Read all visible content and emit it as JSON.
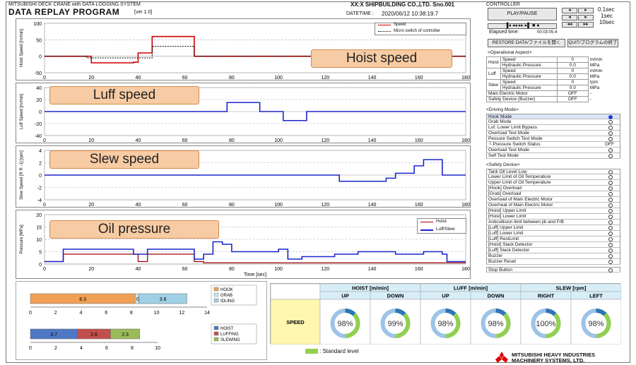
{
  "header": {
    "system": "MITSUBISHI DECK CRANE with DATA LOGGING SYSTEM",
    "program": "DATA REPLAY PROGRAM",
    "version": "[ver 1.0]",
    "shipyard": "XX:X SHIPBUILDING CO.,LTD.  Sno.001",
    "datetime_label": "DATETIME :",
    "datetime": "2020/06/12 10:38:19.7"
  },
  "charts": {
    "hoist": {
      "tag": "Hoist speed",
      "ylabel": "Hoist Speed [m/min]",
      "legend": [
        "Speed",
        "Micro switch of controller"
      ]
    },
    "luff": {
      "tag": "Luff speed",
      "ylabel": "Luff Speed [m/min]"
    },
    "slew": {
      "tag": "Slew speed",
      "ylabel": "Slew Speed [R R -1] [rpm]"
    },
    "oil": {
      "tag": "Oil pressure",
      "ylabel": "Pressure [MPa]",
      "legend": [
        "Hoist",
        "Luff/Slew"
      ],
      "xlabel": "Time [sec]"
    },
    "xticks": [
      "0",
      "20",
      "40",
      "60",
      "80",
      "100",
      "120",
      "140",
      "160",
      "180"
    ]
  },
  "chart_data": [
    {
      "type": "line",
      "series": [
        {
          "name": "Speed",
          "x": [
            0,
            18,
            20,
            22,
            36,
            38,
            40,
            44,
            46,
            60,
            62,
            64
          ],
          "y": [
            0,
            0,
            -20,
            -20,
            -20,
            -18,
            10,
            10,
            60,
            60,
            60,
            0
          ]
        },
        {
          "name": "Micro switch of controller",
          "x": [
            0,
            18,
            38,
            46,
            64
          ],
          "y": [
            0,
            -5,
            -5,
            30,
            0
          ]
        }
      ],
      "xlim": [
        0,
        180
      ]
    },
    {
      "type": "line",
      "series": [
        {
          "name": "Luff",
          "x": [
            0,
            68,
            76,
            78,
            88,
            92,
            100,
            102,
            110,
            112
          ],
          "y": [
            0,
            0,
            0,
            15,
            15,
            0,
            0,
            -15,
            -15,
            0
          ]
        }
      ],
      "xlim": [
        0,
        180
      ]
    },
    {
      "type": "line",
      "series": [
        {
          "name": "Slew",
          "x": [
            0,
            118,
            126,
            134,
            146,
            150,
            158,
            162,
            168,
            170
          ],
          "y": [
            0,
            0,
            -1,
            -1,
            -0.5,
            0.3,
            1.5,
            2.5,
            2.5,
            0
          ]
        }
      ],
      "xlim": [
        0,
        180
      ]
    },
    {
      "type": "line",
      "series": [
        {
          "name": "Hoist",
          "x": [
            0,
            4,
            8,
            18,
            36,
            40,
            44,
            60,
            64,
            68,
            180
          ],
          "y": [
            1,
            1,
            4,
            4,
            4,
            1,
            4,
            4,
            1,
            0.5,
            0.5
          ]
        },
        {
          "name": "Luff/Slew",
          "x": [
            0,
            4,
            8,
            18,
            36,
            38,
            44,
            60,
            64,
            68,
            72,
            76,
            78,
            80,
            100,
            104,
            110,
            118,
            124,
            126,
            134,
            146,
            150,
            158,
            162,
            170,
            172,
            178
          ],
          "y": [
            1,
            1,
            6,
            6,
            6,
            4,
            6,
            6,
            2,
            4,
            9,
            8,
            8,
            5,
            6,
            2,
            3,
            3,
            4,
            4,
            5,
            5,
            4,
            4,
            5,
            4,
            1,
            1
          ]
        }
      ],
      "xlim": [
        0,
        180
      ]
    }
  ],
  "controller": {
    "title": "CONTROLLER",
    "play_pause": "PLAY/PAUSE",
    "steps": [
      "0.1sec",
      "1sec",
      "10sec"
    ],
    "elapsed_label": "Elapsed time:",
    "elapsed": "00:03:05.4",
    "restore": "RESTORE DATA/ファイルを開く",
    "quit": "QUIT/プログラムの終了"
  },
  "operational": {
    "title": "<Operational Aspect>",
    "rows": [
      {
        "group": "Hoist",
        "name": "Speed",
        "value": "0",
        "unit": "m/min"
      },
      {
        "group": "",
        "name": "Hydraulic Pressure",
        "value": "0.0",
        "unit": "MPa"
      },
      {
        "group": "Luff",
        "name": "Speed",
        "value": "0",
        "unit": "m/min"
      },
      {
        "group": "",
        "name": "Hydraulic Pressure",
        "value": "0.0",
        "unit": "MPa"
      },
      {
        "group": "Slew",
        "name": "Speed",
        "value": "0",
        "unit": "rpm"
      },
      {
        "group": "",
        "name": "Hydraulic Pressure",
        "value": "0.0",
        "unit": "MPa"
      },
      {
        "group": "",
        "name": "Main Electric Motor",
        "value": "OFF",
        "unit": "-"
      },
      {
        "group": "",
        "name": "Safety Device (Buzzer)",
        "value": "OFF",
        "unit": "-"
      }
    ]
  },
  "driving": {
    "title": "<Driving Mode>",
    "items": [
      "Hook Mode",
      "Grab Mode",
      "Luf. Lower Limit Bypass",
      "Overload Test Mode",
      "Pessure Switch Test Mode",
      "└ Pressure Switch Status",
      "Overload Test Mode",
      "Self Test Mode"
    ],
    "status_value": "OFF"
  },
  "safety": {
    "title": "<Safety Device>",
    "items": [
      "Tank Oil Level Low",
      "Lower Limit of Oil Temperature",
      "Upper Limit of Oil Temperature",
      "[Hook] Overload",
      "[Grab] Overload",
      "Overload of Main Electric Motor",
      "Overheat of Main Electric Motor",
      "[Hoist] Upper Limit",
      "[Hoist] Lower Limit",
      "Anticollision limit between jib and F/B",
      "[Luff] Upper Limit",
      "[Luff] Lower Limit",
      "[Luff] RestLimit",
      "[Hoist] Slack Detector",
      "[Luff] Slack Detector",
      "Buzzer",
      "Buzzer Reset"
    ],
    "stop": "Stop Button"
  },
  "bars": {
    "mode_legend": [
      "HOOK",
      "GRAB",
      "IDLING"
    ],
    "mode_values": [
      "8.3",
      "0.3",
      "3.8"
    ],
    "mode_ticks": [
      "0",
      "2",
      "4",
      "6",
      "8",
      "10",
      "12",
      "14"
    ],
    "motion_legend": [
      "HOIST",
      "LUFFING",
      "SLEWING"
    ],
    "motion_values": [
      "3.7",
      "2.6",
      "2.3"
    ],
    "motion_ticks": [
      "0",
      "2",
      "4",
      "6",
      "8",
      "10"
    ],
    "colors": {
      "hook": "#f0a054",
      "grab": "#c8e8f4",
      "idling": "#9fd0e6",
      "hoist": "#4f78c4",
      "luffing": "#c0504d",
      "slewing": "#9bbb59"
    }
  },
  "speed_table": {
    "groups": [
      "HOIST [m/min]",
      "LUFF [m/min]",
      "SLEW [rpm]"
    ],
    "subs": [
      "UP",
      "DOWN",
      "UP",
      "DOWN",
      "RIGHT",
      "LEFT"
    ],
    "row_label": "SPEED",
    "values": [
      "98%",
      "99%",
      "98%",
      "98%",
      "100%",
      "98%"
    ],
    "pct": [
      98,
      99,
      98,
      98,
      100,
      98
    ],
    "legend": ": Standard level"
  },
  "footer": {
    "company_line1": "MITSUBISHI HEAVY INDUSTRIES",
    "company_line2": "MACHINERY SYSTEMS, LTD."
  }
}
